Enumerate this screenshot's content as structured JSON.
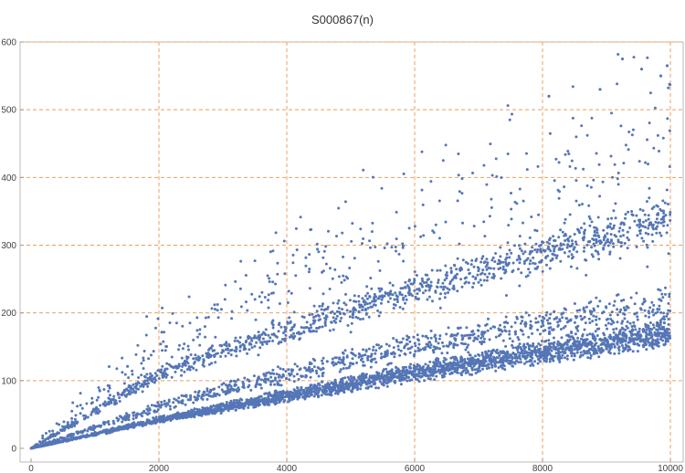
{
  "chart_data": {
    "type": "scatter",
    "title": "S000867(n)",
    "xlabel": "",
    "ylabel": "",
    "xlim": [
      0,
      10000
    ],
    "ylim": [
      0,
      600
    ],
    "x_ticks": [
      0,
      2000,
      4000,
      6000,
      8000,
      10000
    ],
    "y_ticks": [
      0,
      100,
      200,
      300,
      400,
      500,
      600
    ],
    "grid": true,
    "grid_style": "dashed",
    "n_points": 10000,
    "bands": [
      {
        "x": [
          0,
          2000,
          4000,
          6000,
          8000,
          10000
        ],
        "y": [
          0,
          42,
          78,
          112,
          143,
          170
        ]
      },
      {
        "x": [
          0,
          2000,
          4000,
          6000,
          8000,
          10000
        ],
        "y": [
          0,
          62,
          110,
          150,
          185,
          215
        ]
      },
      {
        "x": [
          0,
          2000,
          4000,
          6000,
          8000,
          10000
        ],
        "y": [
          0,
          110,
          175,
          235,
          290,
          340
        ]
      },
      {
        "x": [
          0,
          2000,
          4000,
          6000,
          8000,
          10000
        ],
        "y": [
          0,
          150,
          240,
          320,
          390,
          450
        ]
      }
    ],
    "max_points": [
      {
        "x": 9250,
        "y": 575
      },
      {
        "x": 9550,
        "y": 560
      },
      {
        "x": 9850,
        "y": 550
      },
      {
        "x": 9950,
        "y": 565
      },
      {
        "x": 8100,
        "y": 520
      },
      {
        "x": 8900,
        "y": 530
      }
    ],
    "colors": {
      "marker": "#5576b6",
      "grid": "#e8a060",
      "axis": "#999999",
      "frame": "#bbbbbb"
    }
  }
}
